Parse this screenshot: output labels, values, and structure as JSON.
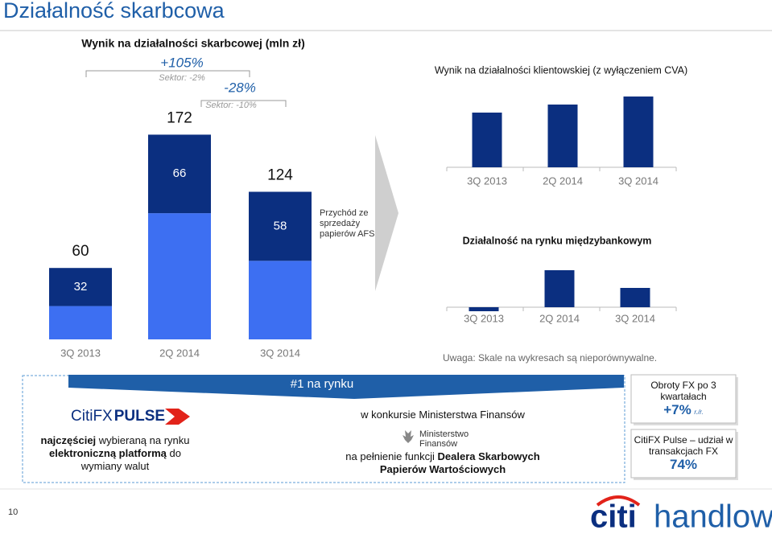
{
  "title": "Działalność skarbcowa",
  "chart_data": [
    {
      "type": "stacked_bar",
      "title": "Wynik na działalności skarbcowej (mln zł)",
      "categories": [
        "3Q 2013",
        "2Q 2014",
        "3Q 2014"
      ],
      "series": [
        {
          "color": "#3d6ff2",
          "values": [
            28,
            106,
            66
          ]
        },
        {
          "color": "#0b2f80",
          "values": [
            32,
            66,
            58
          ]
        }
      ],
      "totals": [
        60,
        172,
        124
      ],
      "segment_note": "Przychód ze sprzedaży papierów AFS",
      "changes": [
        {
          "label": "+105%",
          "sector": "Sektor: -2%"
        },
        {
          "label": "-28%",
          "sector": "Sektor: -10%"
        }
      ]
    },
    {
      "type": "bar",
      "title": "Wynik na działalności klientowskiej (z wyłączeniem CVA)",
      "categories": [
        "3Q 2013",
        "2Q 2014",
        "3Q 2014"
      ],
      "values": [
        68,
        78,
        88
      ],
      "color": "#0b2f80"
    },
    {
      "type": "bar",
      "title": "Działalność na rynku międzybankowym",
      "categories": [
        "3Q 2013",
        "2Q 2014",
        "3Q 2014"
      ],
      "values": [
        -5,
        46,
        24
      ],
      "color": "#0b2f80"
    }
  ],
  "note": "Uwaga: Skale na wykresach są nieporównywalne.",
  "award": {
    "banner": "#1 na rynku",
    "product_logo": [
      "CitiFX",
      "PULSE"
    ],
    "left": [
      {
        "text": "najczęściej",
        "bold": true
      },
      {
        "text": " wybieraną na rynku "
      },
      {
        "text": "elektroniczną platformą",
        "bold": true
      },
      {
        "text": " do wymiany walut"
      }
    ],
    "contest": "w konkursie Ministerstwa Finansów",
    "ministry_logo": [
      "Ministerstwo",
      "Finansów"
    ],
    "right": [
      {
        "text": "na pełnienie funkcji "
      },
      {
        "text": "Dealera Skarbowych Papierów Wartościowych",
        "bold": true
      }
    ]
  },
  "stats": [
    {
      "label": "Obroty FX po 3 kwartałach",
      "value": "+7%",
      "unit": "r./r."
    },
    {
      "label": "CitiFX Pulse – udział w transakcjach FX",
      "value": "74%"
    }
  ],
  "page_number": "10",
  "logo": [
    "citi",
    "handlowy"
  ]
}
